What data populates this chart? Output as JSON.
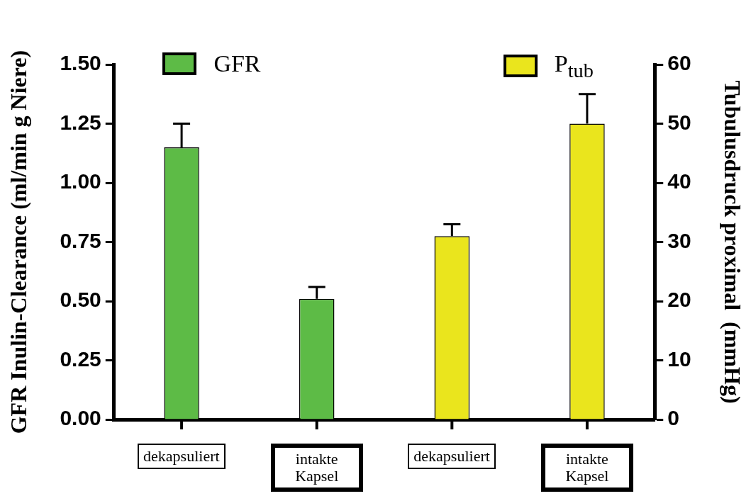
{
  "chart_data": {
    "type": "bar",
    "ylabel": "GFR Inulin-Clearance (ml/min g Niere)",
    "y2label": "Tubulusdruck proximal  (mmHg)",
    "categories": [
      "dekapsuliert",
      "intakte Kapsel",
      "dekapsuliert",
      "intakte Kapsel"
    ],
    "series": [
      {
        "name": "GFR",
        "color": "#5dbb46",
        "values": [
          1.15,
          0.51,
          null,
          null
        ],
        "errors": [
          0.1,
          0.05,
          null,
          null
        ]
      },
      {
        "name": "P$_{tub}$",
        "color": "#eae51d",
        "axis": "y2",
        "values": [
          null,
          null,
          31,
          50
        ],
        "errors": [
          null,
          null,
          2,
          5
        ]
      }
    ],
    "ylim": [
      0,
      1.5
    ],
    "yticks": [
      {
        "value": 0,
        "label": "0.00"
      },
      {
        "value": 0.25,
        "label": "0.25"
      },
      {
        "value": 0.5,
        "label": "0.50"
      },
      {
        "value": 0.75,
        "label": "0.75"
      },
      {
        "value": 1,
        "label": "1.00"
      },
      {
        "value": 1.25,
        "label": "1.25"
      },
      {
        "value": 1.5,
        "label": "1.50"
      }
    ],
    "y2lim": [
      0,
      60
    ],
    "y2ticks": [
      0,
      10,
      20,
      30,
      40,
      50,
      60
    ],
    "legend": "top",
    "grid": false
  }
}
